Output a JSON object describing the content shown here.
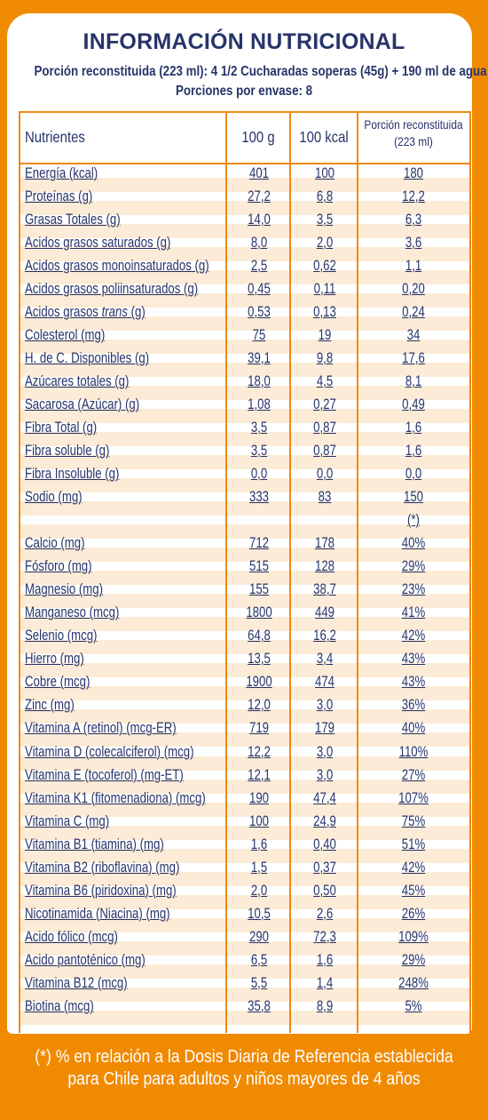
{
  "title": "INFORMACIÓN NUTRICIONAL",
  "subtitle_line1": "Porción reconstituida (223 ml): 4 1/2 Cucharadas soperas (45g) + 190 ml de agua",
  "subtitle_line2": "Porciones por envase: 8",
  "headers": {
    "nutrients": "Nutrientes",
    "per100g": "100 g",
    "per100kcal": "100 kcal",
    "portion_line1": "Porción reconstituida",
    "portion_line2": "(223 ml)"
  },
  "rows": [
    {
      "name": "Energía (kcal)",
      "v1": "401",
      "v2": "100",
      "v3": "180"
    },
    {
      "name": "Proteínas (g)",
      "v1": "27,2",
      "v2": "6,8",
      "v3": "12,2"
    },
    {
      "name": "Grasas Totales (g)",
      "v1": "14,0",
      "v2": "3,5",
      "v3": "6,3"
    },
    {
      "name": "Acidos grasos saturados (g)",
      "v1": "8,0",
      "v2": "2,0",
      "v3": "3,6"
    },
    {
      "name": "Acidos grasos monoinsaturados (g)",
      "v1": "2,5",
      "v2": "0,62",
      "v3": "1,1"
    },
    {
      "name": "Acidos grasos poliinsaturados (g)",
      "v1": "0,45",
      "v2": "0,11",
      "v3": "0,20"
    },
    {
      "name": "Acidos grasos trans (g)",
      "v1": "0,53",
      "v2": "0,13",
      "v3": "0,24"
    },
    {
      "name": "Colesterol (mg)",
      "v1": "75",
      "v2": "19",
      "v3": "34"
    },
    {
      "name": "H. de C. Disponibles (g)",
      "v1": "39,1",
      "v2": "9,8",
      "v3": "17,6"
    },
    {
      "name": "Azúcares totales (g)",
      "v1": "18,0",
      "v2": "4,5",
      "v3": "8,1"
    },
    {
      "name": "Sacarosa (Azúcar) (g)",
      "v1": "1,08",
      "v2": "0,27",
      "v3": "0,49"
    },
    {
      "name": "Fibra Total (g)",
      "v1": "3,5",
      "v2": "0,87",
      "v3": "1,6"
    },
    {
      "name": "Fibra soluble (g)",
      "v1": "3,5",
      "v2": "0,87",
      "v3": "1,6"
    },
    {
      "name": "Fibra Insoluble (g)",
      "v1": "0,0",
      "v2": "0,0",
      "v3": "0,0"
    },
    {
      "name": "Sodio (mg)",
      "v1": "333",
      "v2": "83",
      "v3": "150"
    },
    {
      "name": "",
      "v1": "",
      "v2": "",
      "v3": "(*)"
    },
    {
      "name": "Calcio (mg)",
      "v1": "712",
      "v2": "178",
      "v3": "40%"
    },
    {
      "name": "Fósforo (mg)",
      "v1": "515",
      "v2": "128",
      "v3": "29%"
    },
    {
      "name": "Magnesio (mg)",
      "v1": "155",
      "v2": "38,7",
      "v3": "23%"
    },
    {
      "name": "Manganeso (mcg)",
      "v1": "1800",
      "v2": "449",
      "v3": "41%"
    },
    {
      "name": "Selenio (mcg)",
      "v1": "64,8",
      "v2": "16,2",
      "v3": "42%"
    },
    {
      "name": "Hierro (mg)",
      "v1": "13,5",
      "v2": "3,4",
      "v3": "43%"
    },
    {
      "name": "Cobre (mcg)",
      "v1": "1900",
      "v2": "474",
      "v3": "43%"
    },
    {
      "name": "Zinc (mg)",
      "v1": "12,0",
      "v2": "3,0",
      "v3": "36%"
    },
    {
      "name": "Vitamina A (retinol) (mcg-ER)",
      "v1": "719",
      "v2": "179",
      "v3": "40%"
    },
    {
      "name": "Vitamina D (colecalciferol) (mcg)",
      "v1": "12,2",
      "v2": "3,0",
      "v3": "110%"
    },
    {
      "name": "Vitamina E (tocoferol) (mg-ET)",
      "v1": "12,1",
      "v2": "3,0",
      "v3": "27%"
    },
    {
      "name": "Vitamina K1 (fitomenadiona) (mcg)",
      "v1": "190",
      "v2": "47,4",
      "v3": "107%"
    },
    {
      "name": "Vitamina C (mg)",
      "v1": "100",
      "v2": "24,9",
      "v3": "75%"
    },
    {
      "name": "Vitamina B1 (tiamina) (mg)",
      "v1": "1,6",
      "v2": "0,40",
      "v3": "51%"
    },
    {
      "name": "Vitamina B2 (riboflavina) (mg)",
      "v1": "1,5",
      "v2": "0,37",
      "v3": "42%"
    },
    {
      "name": "Vitamina B6 (piridoxina) (mg)",
      "v1": "2,0",
      "v2": "0,50",
      "v3": "45%"
    },
    {
      "name": "Nicotinamida (Niacina) (mg)",
      "v1": "10,5",
      "v2": "2,6",
      "v3": "26%"
    },
    {
      "name": "Acido fólico (mcg)",
      "v1": "290",
      "v2": "72,3",
      "v3": "109%"
    },
    {
      "name": "Acido pantoténico (mg)",
      "v1": "6,5",
      "v2": "1,6",
      "v3": "29%"
    },
    {
      "name": "Vitamina B12 (mcg)",
      "v1": "5,5",
      "v2": "1,4",
      "v3": "248%"
    },
    {
      "name": "Biotina (mcg)",
      "v1": "35,8",
      "v2": "8,9",
      "v3": "5%"
    }
  ],
  "footnote_line1": "(*) % en relación a la Dosis Diaria de Referencia establecida",
  "footnote_line2": "para Chile para adultos y niños mayores de 4 años",
  "colors": {
    "orange": "#F08A00",
    "navy": "#27346A",
    "row_alt": "#FCEBD6"
  }
}
